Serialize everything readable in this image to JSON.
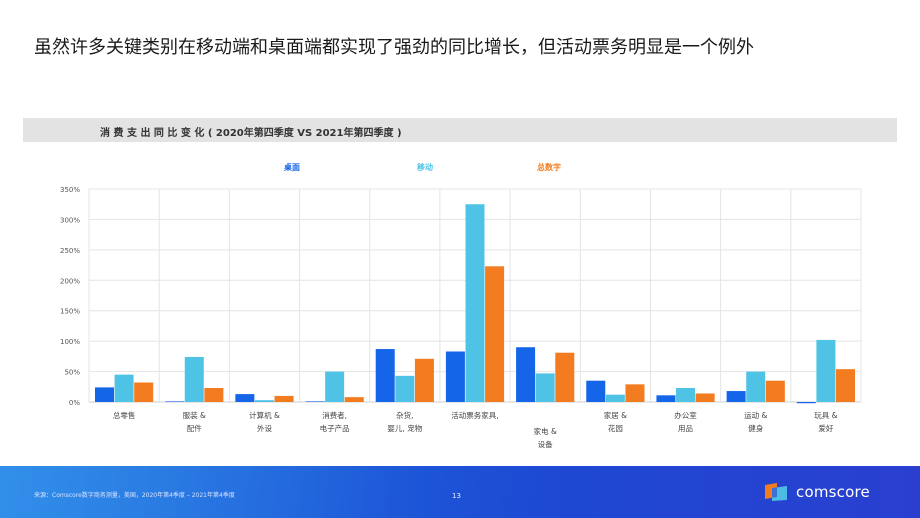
{
  "headline": "虽然许多关键类别在移动端和桌面端都实现了强劲的同比增长，但活动票务明显是一个例外",
  "chart_data": {
    "type": "bar",
    "title": "消 费 支 出 同 比 变 化 ( 2020年第四季度 VS 2021年第四季度 )",
    "categories": [
      [
        "总零售"
      ],
      [
        "服装 &",
        "配件"
      ],
      [
        "计算机 &",
        "外设"
      ],
      [
        "消费者,",
        "电子产品"
      ],
      [
        "杂货,",
        "婴儿, 宠物"
      ],
      [
        "活动票务家具,"
      ],
      [
        "家电 &",
        "设备"
      ],
      [
        "家居 &",
        "花园"
      ],
      [
        "办公室",
        "用品"
      ],
      [
        "运动 &",
        "健身"
      ],
      [
        "玩具 &",
        "爱好"
      ]
    ],
    "series": [
      {
        "name": "桌面",
        "color": "#1565e8",
        "values": [
          24,
          1,
          13,
          1,
          87,
          83,
          90,
          35,
          11,
          18,
          -2
        ]
      },
      {
        "name": "移动",
        "color": "#4fc3e6",
        "values": [
          45,
          74,
          3,
          50,
          43,
          325,
          47,
          12,
          23,
          50,
          102
        ]
      },
      {
        "name": "总数字",
        "color": "#f47c20",
        "values": [
          32,
          23,
          10,
          8,
          71,
          223,
          81,
          29,
          14,
          35,
          54
        ]
      }
    ],
    "y_ticks": [
      "0%",
      "50%",
      "100%",
      "150%",
      "200%",
      "250%",
      "300%",
      "350%"
    ],
    "ylim": [
      0,
      350
    ],
    "grid": true,
    "legend_position": "top-center"
  },
  "footer": {
    "source": "来源：Comscore数字商务测量，美国，2020年第4季度 – 2021年第4季度",
    "page": "13",
    "brand": "comscore"
  },
  "colors": {
    "footer_blue": "#1f55d8",
    "logo_orange": "#f47c20",
    "logo_blue": "#4fc3e6"
  }
}
